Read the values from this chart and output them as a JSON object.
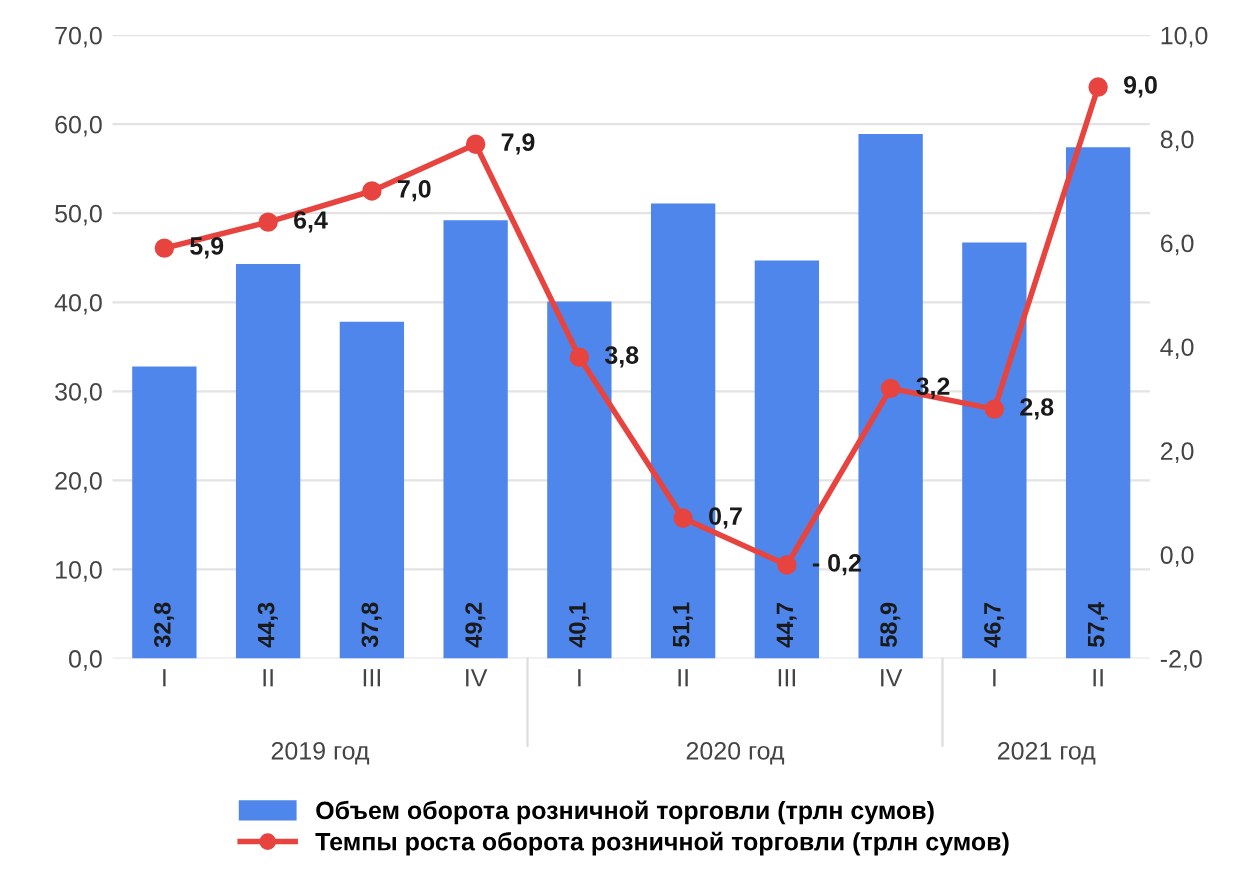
{
  "chart_data": {
    "type": "bar",
    "categories": [
      "I",
      "II",
      "III",
      "IV",
      "I",
      "II",
      "III",
      "IV",
      "I",
      "II"
    ],
    "series": [
      {
        "name": "Объем оборота розничной торговли (трлн сумов)",
        "color": "#4f86ec",
        "values": [
          32.8,
          44.3,
          37.8,
          49.2,
          40.1,
          51.1,
          44.7,
          58.9,
          46.7,
          57.4
        ],
        "value_labels": [
          "32,8",
          "44,3",
          "37,8",
          "49,2",
          "40,1",
          "51,1",
          "44,7",
          "58,9",
          "46,7",
          "57,4"
        ]
      },
      {
        "name": "Темпы роста оборота розничной торговли (трлн сумов)",
        "type": "line",
        "axis": "y2",
        "color": "#e8443f",
        "marker": "circle",
        "values": [
          5.9,
          6.4,
          7.0,
          7.9,
          3.8,
          0.7,
          -0.2,
          3.2,
          2.8,
          9.0
        ],
        "value_labels": [
          "5,9",
          "6,4",
          "7,0",
          "7,9",
          "3,8",
          "0,7",
          "- 0,2",
          "3,2",
          "2,8",
          "9,0"
        ]
      }
    ],
    "annotations": [
      "2019 год",
      "2020 год",
      "2021 год"
    ],
    "ylim": [
      0,
      70
    ],
    "yticks": [
      {
        "value": 0,
        "label": "0,0"
      },
      {
        "value": 10,
        "label": "10,0"
      },
      {
        "value": 20,
        "label": "20,0"
      },
      {
        "value": 30,
        "label": "30,0"
      },
      {
        "value": 40,
        "label": "40,0"
      },
      {
        "value": 50,
        "label": "50,0"
      },
      {
        "value": 60,
        "label": "60,0"
      },
      {
        "value": 70,
        "label": "70,0"
      }
    ],
    "y2lim": [
      -2,
      10
    ],
    "y2ticks": [
      {
        "value": -2,
        "label": "-2,0"
      },
      {
        "value": 0,
        "label": "0,0"
      },
      {
        "value": 2,
        "label": "2,0"
      },
      {
        "value": 4,
        "label": "4,0"
      },
      {
        "value": 6,
        "label": "6,0"
      },
      {
        "value": 8,
        "label": "8,0"
      },
      {
        "value": 10,
        "label": "10,0"
      }
    ],
    "grid": "y",
    "legend": "bottom"
  }
}
